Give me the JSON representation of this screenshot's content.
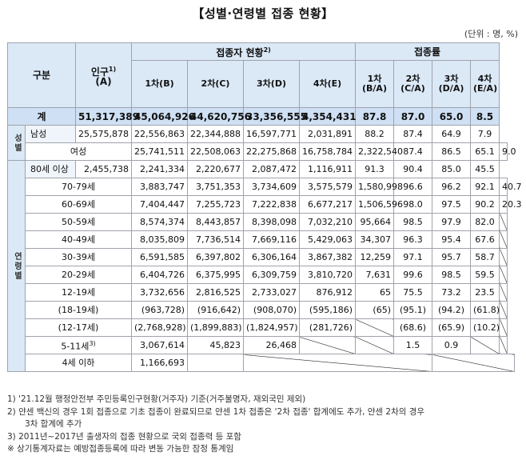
{
  "title": "【성별·연령별 접종 현황】",
  "unit": "(단위 : 명, %)",
  "header": {
    "category": "구분",
    "population": "인구",
    "population_sup": "1)",
    "population_code": "(A)",
    "vaccinated_group": "접종자 현황",
    "vaccinated_sup": "2)",
    "rate_group": "접종률",
    "dose1": "1차(B)",
    "dose2": "2차(C)",
    "dose3": "3차(D)",
    "dose4": "4차(E)",
    "rate1_a": "1차",
    "rate1_b": "(B/A)",
    "rate2_a": "2차",
    "rate2_b": "(C/A)",
    "rate3_a": "3차",
    "rate3_b": "(D/A)",
    "rate4_a": "4차",
    "rate4_b": "(E/A)"
  },
  "total": {
    "label": "계",
    "values": [
      "51,317,389",
      "45,064,926",
      "44,620,756",
      "33,356,555",
      "4,354,431",
      "87.8",
      "87.0",
      "65.0",
      "8.5"
    ]
  },
  "sex_group": "성별",
  "sex_rows": [
    {
      "label": "남성",
      "values": [
        "25,575,878",
        "22,556,863",
        "22,344,888",
        "16,597,771",
        "2,031,891",
        "88.2",
        "87.4",
        "64.9",
        "7.9"
      ]
    },
    {
      "label": "여성",
      "values": [
        "25,741,511",
        "22,508,063",
        "22,275,868",
        "16,758,784",
        "2,322,540",
        "87.4",
        "86.5",
        "65.1",
        "9.0"
      ]
    }
  ],
  "age_group": "연령별",
  "age_rows": [
    {
      "label": "80세 이상",
      "values": [
        "2,455,738",
        "2,241,334",
        "2,220,677",
        "2,087,472",
        "1,116,911",
        "91.3",
        "90.4",
        "85.0",
        "45.5"
      ]
    },
    {
      "label": "70-79세",
      "values": [
        "3,883,747",
        "3,751,353",
        "3,734,609",
        "3,575,579",
        "1,580,998",
        "96.6",
        "96.2",
        "92.1",
        "40.7"
      ]
    },
    {
      "label": "60-69세",
      "values": [
        "7,404,447",
        "7,255,723",
        "7,222,838",
        "6,677,217",
        "1,506,596",
        "98.0",
        "97.5",
        "90.2",
        "20.3"
      ]
    },
    {
      "label": "50-59세",
      "values": [
        "8,574,374",
        "8,443,857",
        "8,398,098",
        "7,032,210",
        "95,664",
        "98.5",
        "97.9",
        "82.0",
        ""
      ]
    },
    {
      "label": "40-49세",
      "values": [
        "8,035,809",
        "7,736,514",
        "7,669,116",
        "5,429,063",
        "34,307",
        "96.3",
        "95.4",
        "67.6",
        ""
      ]
    },
    {
      "label": "30-39세",
      "values": [
        "6,591,585",
        "6,397,802",
        "6,306,164",
        "3,867,382",
        "12,259",
        "97.1",
        "95.7",
        "58.7",
        ""
      ]
    },
    {
      "label": "20-29세",
      "values": [
        "6,404,726",
        "6,375,995",
        "6,309,759",
        "3,810,720",
        "7,631",
        "99.6",
        "98.5",
        "59.5",
        ""
      ]
    },
    {
      "label": "12-19세",
      "values": [
        "3,732,656",
        "2,816,525",
        "2,733,027",
        "876,912",
        "65",
        "75.5",
        "73.2",
        "23.5",
        ""
      ]
    },
    {
      "label": "(18-19세)",
      "values": [
        "(963,728)",
        "(916,642)",
        "(908,070)",
        "(595,186)",
        "(65)",
        "(95.1)",
        "(94.2)",
        "(61.8)",
        ""
      ]
    },
    {
      "label": "(12-17세)",
      "values": [
        "(2,768,928)",
        "(1,899,883)",
        "(1,824,957)",
        "(281,726)",
        "",
        "(68.6)",
        "(65.9)",
        "(10.2)",
        ""
      ]
    },
    {
      "label": "5-11세",
      "label_sup": "3)",
      "values": [
        "3,067,614",
        "45,823",
        "26,468",
        "",
        "",
        "1.5",
        "0.9",
        "",
        ""
      ]
    },
    {
      "label": "4세 이하",
      "values": [
        "1,166,693",
        "",
        "",
        "",
        "",
        "",
        "",
        "",
        ""
      ]
    }
  ],
  "notes": [
    "1) '21.12월 행정안전부 주민등록인구현황(거주자) 기준(거주불명자, 재외국민 제외)",
    "2) 얀센 백신의 경우 1회 접종으로 기초 접종이 완료되므로 얀센 1차 접종은 '2차 접종' 합계에도 추가, 얀센 2차의 경우",
    "3차 합계에 추가",
    "3) 2011년~2017년 출생자의 접종 현황으로 국외 접종력 등 포함",
    "※ 상기통계자료는 예방접종등록에 따라 변동 가능한 잠정 통계임"
  ]
}
